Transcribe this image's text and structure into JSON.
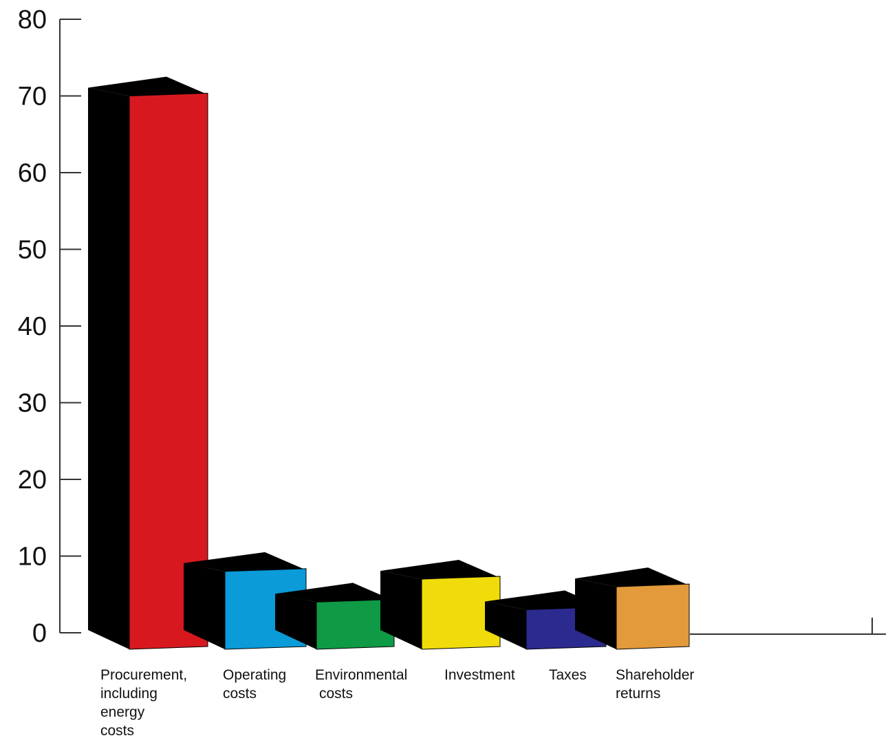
{
  "chart_data": {
    "type": "bar",
    "categories": [
      "Procurement, including energy costs",
      "Operating costs",
      "Environmental costs",
      "Investment",
      "Taxes",
      "Shareholder returns"
    ],
    "category_label_lines": [
      [
        "Procurement,",
        "including",
        "energy",
        "costs"
      ],
      [
        "Operating",
        "costs"
      ],
      [
        "Environmental",
        "costs"
      ],
      [
        "Investment"
      ],
      [
        "Taxes"
      ],
      [
        "Shareholder",
        "returns"
      ]
    ],
    "values": [
      70,
      8,
      4,
      7,
      3,
      6
    ],
    "colors": [
      "#d7191f",
      "#0a9bd8",
      "#0f9a45",
      "#f0dc0a",
      "#2b2a8e",
      "#e39a3a"
    ],
    "yticks": [
      "0",
      "10",
      "20",
      "30",
      "40",
      "50",
      "60",
      "70",
      "80"
    ],
    "ylim": [
      0,
      80
    ],
    "xlabel": "",
    "ylabel": "",
    "title": "",
    "grid": false,
    "legend": "none"
  }
}
